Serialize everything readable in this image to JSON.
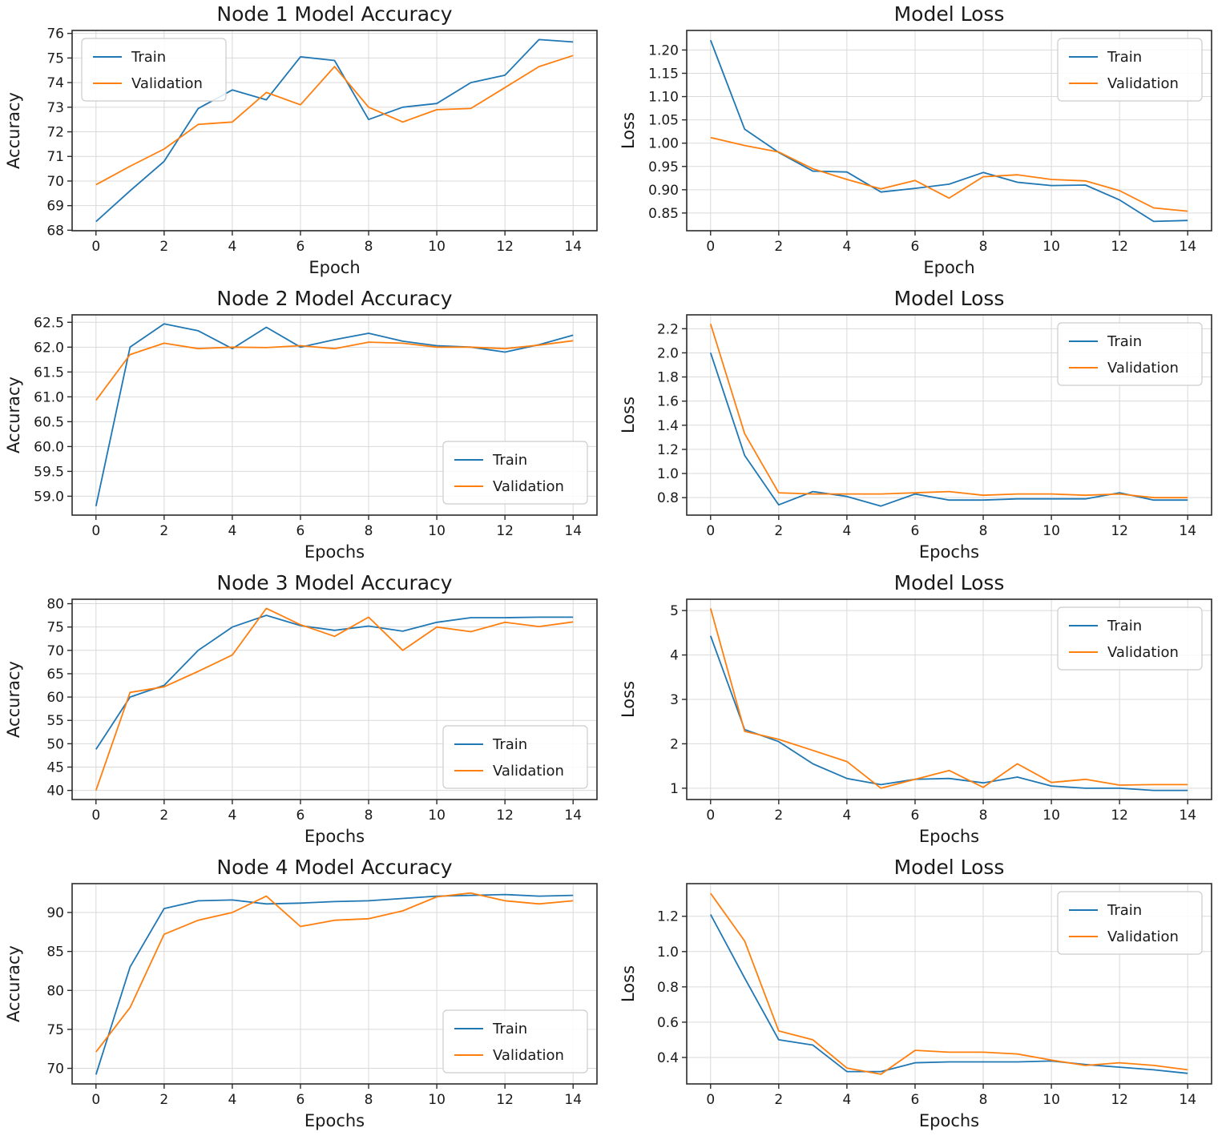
{
  "page": {
    "background": "#ffffff"
  },
  "colors": {
    "train": "#1f77b4",
    "validation": "#ff7f0e",
    "grid": "#d9d9d9",
    "spine": "#2b2b2b",
    "text": "#1a1a1a",
    "legend_border": "#cccccc",
    "legend_bg": "#ffffff"
  },
  "chart_data": [
    {
      "type": "line",
      "title": "Node 1 Model Accuracy",
      "xlabel": "Epoch",
      "ylabel": "Accuracy",
      "x": [
        0,
        1,
        2,
        3,
        4,
        5,
        6,
        7,
        8,
        9,
        10,
        11,
        12,
        13,
        14
      ],
      "xlim": [
        -0.7,
        14.7
      ],
      "ylim": [
        67.98,
        76.12
      ],
      "xticks": [
        0,
        2,
        4,
        6,
        8,
        10,
        12,
        14
      ],
      "xticklabels": [
        "0",
        "2",
        "4",
        "6",
        "8",
        "10",
        "12",
        "14"
      ],
      "yticks": [
        68,
        69,
        70,
        71,
        72,
        73,
        74,
        75,
        76
      ],
      "yticklabels": [
        "68",
        "69",
        "70",
        "71",
        "72",
        "73",
        "74",
        "75",
        "76"
      ],
      "grid": true,
      "legend_position": "upper-left",
      "series": [
        {
          "name": "Train",
          "color_key": "train",
          "values": [
            68.35,
            69.6,
            70.8,
            72.95,
            73.7,
            73.3,
            75.05,
            74.9,
            72.5,
            73.0,
            73.15,
            74.0,
            74.3,
            75.75,
            75.65
          ]
        },
        {
          "name": "Validation",
          "color_key": "validation",
          "values": [
            69.85,
            70.6,
            71.3,
            72.3,
            72.4,
            73.6,
            73.1,
            74.65,
            73.0,
            72.4,
            72.9,
            72.95,
            73.8,
            74.65,
            75.1
          ]
        }
      ]
    },
    {
      "type": "line",
      "title": "Model Loss",
      "xlabel": "Epoch",
      "ylabel": "Loss",
      "x": [
        0,
        1,
        2,
        3,
        4,
        5,
        6,
        7,
        8,
        9,
        10,
        11,
        12,
        13,
        14
      ],
      "xlim": [
        -0.7,
        14.7
      ],
      "ylim": [
        0.812,
        1.242
      ],
      "xticks": [
        0,
        2,
        4,
        6,
        8,
        10,
        12,
        14
      ],
      "xticklabels": [
        "0",
        "2",
        "4",
        "6",
        "8",
        "10",
        "12",
        "14"
      ],
      "yticks": [
        0.85,
        0.9,
        0.95,
        1.0,
        1.05,
        1.1,
        1.15,
        1.2
      ],
      "yticklabels": [
        "0.85",
        "0.90",
        "0.95",
        "1.00",
        "1.05",
        "1.10",
        "1.15",
        "1.20"
      ],
      "grid": true,
      "legend_position": "upper-right",
      "series": [
        {
          "name": "Train",
          "color_key": "train",
          "values": [
            1.221,
            1.03,
            0.98,
            0.94,
            0.938,
            0.895,
            0.903,
            0.912,
            0.937,
            0.916,
            0.909,
            0.91,
            0.878,
            0.832,
            0.834
          ]
        },
        {
          "name": "Validation",
          "color_key": "validation",
          "values": [
            1.012,
            0.995,
            0.981,
            0.945,
            0.922,
            0.902,
            0.92,
            0.882,
            0.928,
            0.932,
            0.922,
            0.919,
            0.898,
            0.861,
            0.854
          ]
        }
      ]
    },
    {
      "type": "line",
      "title": "Node 2 Model Accuracy",
      "xlabel": "Epochs",
      "ylabel": "Accuracy",
      "x": [
        0,
        1,
        2,
        3,
        4,
        5,
        6,
        7,
        8,
        9,
        10,
        11,
        12,
        13,
        14
      ],
      "xlim": [
        -0.7,
        14.7
      ],
      "ylim": [
        58.62,
        62.65
      ],
      "xticks": [
        0,
        2,
        4,
        6,
        8,
        10,
        12,
        14
      ],
      "xticklabels": [
        "0",
        "2",
        "4",
        "6",
        "8",
        "10",
        "12",
        "14"
      ],
      "yticks": [
        59.0,
        59.5,
        60.0,
        60.5,
        61.0,
        61.5,
        62.0,
        62.5
      ],
      "yticklabels": [
        "59.0",
        "59.5",
        "60.0",
        "60.5",
        "61.0",
        "61.5",
        "62.0",
        "62.5"
      ],
      "grid": true,
      "legend_position": "lower-right",
      "series": [
        {
          "name": "Train",
          "color_key": "train",
          "values": [
            58.8,
            62.0,
            62.47,
            62.33,
            61.97,
            62.4,
            62.0,
            62.15,
            62.28,
            62.12,
            62.03,
            62.0,
            61.9,
            62.05,
            62.24
          ]
        },
        {
          "name": "Validation",
          "color_key": "validation",
          "values": [
            60.93,
            61.85,
            62.08,
            61.97,
            62.0,
            61.99,
            62.03,
            61.97,
            62.1,
            62.08,
            62.0,
            62.0,
            61.97,
            62.04,
            62.13
          ]
        }
      ]
    },
    {
      "type": "line",
      "title": "Model Loss",
      "xlabel": "Epochs",
      "ylabel": "Loss",
      "x": [
        0,
        1,
        2,
        3,
        4,
        5,
        6,
        7,
        8,
        9,
        10,
        11,
        12,
        13,
        14
      ],
      "xlim": [
        -0.7,
        14.7
      ],
      "ylim": [
        0.655,
        2.315
      ],
      "xticks": [
        0,
        2,
        4,
        6,
        8,
        10,
        12,
        14
      ],
      "xticklabels": [
        "0",
        "2",
        "4",
        "6",
        "8",
        "10",
        "12",
        "14"
      ],
      "yticks": [
        0.8,
        1.0,
        1.2,
        1.4,
        1.6,
        1.8,
        2.0,
        2.2
      ],
      "yticklabels": [
        "0.8",
        "1.0",
        "1.2",
        "1.4",
        "1.6",
        "1.8",
        "2.0",
        "2.2"
      ],
      "grid": true,
      "legend_position": "upper-right",
      "series": [
        {
          "name": "Train",
          "color_key": "train",
          "values": [
            2.0,
            1.15,
            0.74,
            0.85,
            0.81,
            0.73,
            0.83,
            0.78,
            0.78,
            0.79,
            0.79,
            0.79,
            0.84,
            0.78,
            0.78
          ]
        },
        {
          "name": "Validation",
          "color_key": "validation",
          "values": [
            2.24,
            1.33,
            0.84,
            0.83,
            0.83,
            0.83,
            0.84,
            0.85,
            0.82,
            0.83,
            0.83,
            0.82,
            0.83,
            0.8,
            0.8
          ]
        }
      ]
    },
    {
      "type": "line",
      "title": "Node 3 Model Accuracy",
      "xlabel": "Epochs",
      "ylabel": "Accuracy",
      "x": [
        0,
        1,
        2,
        3,
        4,
        5,
        6,
        7,
        8,
        9,
        10,
        11,
        12,
        13,
        14
      ],
      "xlim": [
        -0.7,
        14.7
      ],
      "ylim": [
        38.05,
        80.95
      ],
      "xticks": [
        0,
        2,
        4,
        6,
        8,
        10,
        12,
        14
      ],
      "xticklabels": [
        "0",
        "2",
        "4",
        "6",
        "8",
        "10",
        "12",
        "14"
      ],
      "yticks": [
        40,
        45,
        50,
        55,
        60,
        65,
        70,
        75,
        80
      ],
      "yticklabels": [
        "40",
        "45",
        "50",
        "55",
        "60",
        "65",
        "70",
        "75",
        "80"
      ],
      "grid": true,
      "legend_position": "lower-right",
      "series": [
        {
          "name": "Train",
          "color_key": "train",
          "values": [
            48.8,
            60.0,
            62.5,
            70.0,
            75.0,
            77.5,
            75.3,
            74.3,
            75.2,
            74.1,
            76.0,
            77.0,
            77.0,
            77.1,
            77.1
          ]
        },
        {
          "name": "Validation",
          "color_key": "validation",
          "values": [
            40.0,
            61.0,
            62.2,
            65.5,
            69.0,
            79.0,
            75.5,
            73.0,
            77.1,
            70.0,
            75.0,
            74.0,
            76.0,
            75.1,
            76.1
          ]
        }
      ]
    },
    {
      "type": "line",
      "title": "Model Loss",
      "xlabel": "Epochs",
      "ylabel": "Loss",
      "x": [
        0,
        1,
        2,
        3,
        4,
        5,
        6,
        7,
        8,
        9,
        10,
        11,
        12,
        13,
        14
      ],
      "xlim": [
        -0.7,
        14.7
      ],
      "ylim": [
        0.745,
        5.255
      ],
      "xticks": [
        0,
        2,
        4,
        6,
        8,
        10,
        12,
        14
      ],
      "xticklabels": [
        "0",
        "2",
        "4",
        "6",
        "8",
        "10",
        "12",
        "14"
      ],
      "yticks": [
        1,
        2,
        3,
        4,
        5
      ],
      "yticklabels": [
        "1",
        "2",
        "3",
        "4",
        "5"
      ],
      "grid": true,
      "legend_position": "upper-right",
      "series": [
        {
          "name": "Train",
          "color_key": "train",
          "values": [
            4.43,
            2.32,
            2.05,
            1.55,
            1.22,
            1.08,
            1.2,
            1.22,
            1.12,
            1.25,
            1.05,
            1.0,
            1.0,
            0.95,
            0.95
          ]
        },
        {
          "name": "Validation",
          "color_key": "validation",
          "values": [
            5.05,
            2.28,
            2.1,
            1.85,
            1.6,
            1.0,
            1.2,
            1.4,
            1.02,
            1.55,
            1.13,
            1.2,
            1.07,
            1.08,
            1.08
          ]
        }
      ]
    },
    {
      "type": "line",
      "title": "Node 4 Model Accuracy",
      "xlabel": "Epochs",
      "ylabel": "Accuracy",
      "x": [
        0,
        1,
        2,
        3,
        4,
        5,
        6,
        7,
        8,
        9,
        10,
        11,
        12,
        13,
        14
      ],
      "xlim": [
        -0.7,
        14.7
      ],
      "ylim": [
        68.0,
        93.7
      ],
      "xticks": [
        0,
        2,
        4,
        6,
        8,
        10,
        12,
        14
      ],
      "xticklabels": [
        "0",
        "2",
        "4",
        "6",
        "8",
        "10",
        "12",
        "14"
      ],
      "yticks": [
        70,
        75,
        80,
        85,
        90
      ],
      "yticklabels": [
        "70",
        "75",
        "80",
        "85",
        "90"
      ],
      "grid": true,
      "legend_position": "lower-right",
      "series": [
        {
          "name": "Train",
          "color_key": "train",
          "values": [
            69.2,
            83.0,
            90.5,
            91.5,
            91.6,
            91.1,
            91.2,
            91.4,
            91.5,
            91.8,
            92.1,
            92.2,
            92.3,
            92.1,
            92.2
          ]
        },
        {
          "name": "Validation",
          "color_key": "validation",
          "values": [
            72.1,
            77.8,
            87.2,
            89.0,
            90.0,
            92.1,
            88.2,
            89.0,
            89.2,
            90.2,
            92.0,
            92.5,
            91.5,
            91.1,
            91.5
          ]
        }
      ]
    },
    {
      "type": "line",
      "title": "Model Loss",
      "xlabel": "Epochs",
      "ylabel": "Loss",
      "x": [
        0,
        1,
        2,
        3,
        4,
        5,
        6,
        7,
        8,
        9,
        10,
        11,
        12,
        13,
        14
      ],
      "xlim": [
        -0.7,
        14.7
      ],
      "ylim": [
        0.25,
        1.385
      ],
      "xticks": [
        0,
        2,
        4,
        6,
        8,
        10,
        12,
        14
      ],
      "xticklabels": [
        "0",
        "2",
        "4",
        "6",
        "8",
        "10",
        "12",
        "14"
      ],
      "yticks": [
        0.4,
        0.6,
        0.8,
        1.0,
        1.2
      ],
      "yticklabels": [
        "0.4",
        "0.6",
        "0.8",
        "1.0",
        "1.2"
      ],
      "grid": true,
      "legend_position": "upper-right",
      "series": [
        {
          "name": "Train",
          "color_key": "train",
          "values": [
            1.21,
            0.85,
            0.5,
            0.47,
            0.32,
            0.32,
            0.37,
            0.375,
            0.375,
            0.375,
            0.38,
            0.36,
            0.345,
            0.33,
            0.31
          ]
        },
        {
          "name": "Validation",
          "color_key": "validation",
          "values": [
            1.33,
            1.06,
            0.55,
            0.5,
            0.34,
            0.305,
            0.44,
            0.43,
            0.43,
            0.42,
            0.385,
            0.355,
            0.37,
            0.355,
            0.33
          ]
        }
      ]
    }
  ]
}
